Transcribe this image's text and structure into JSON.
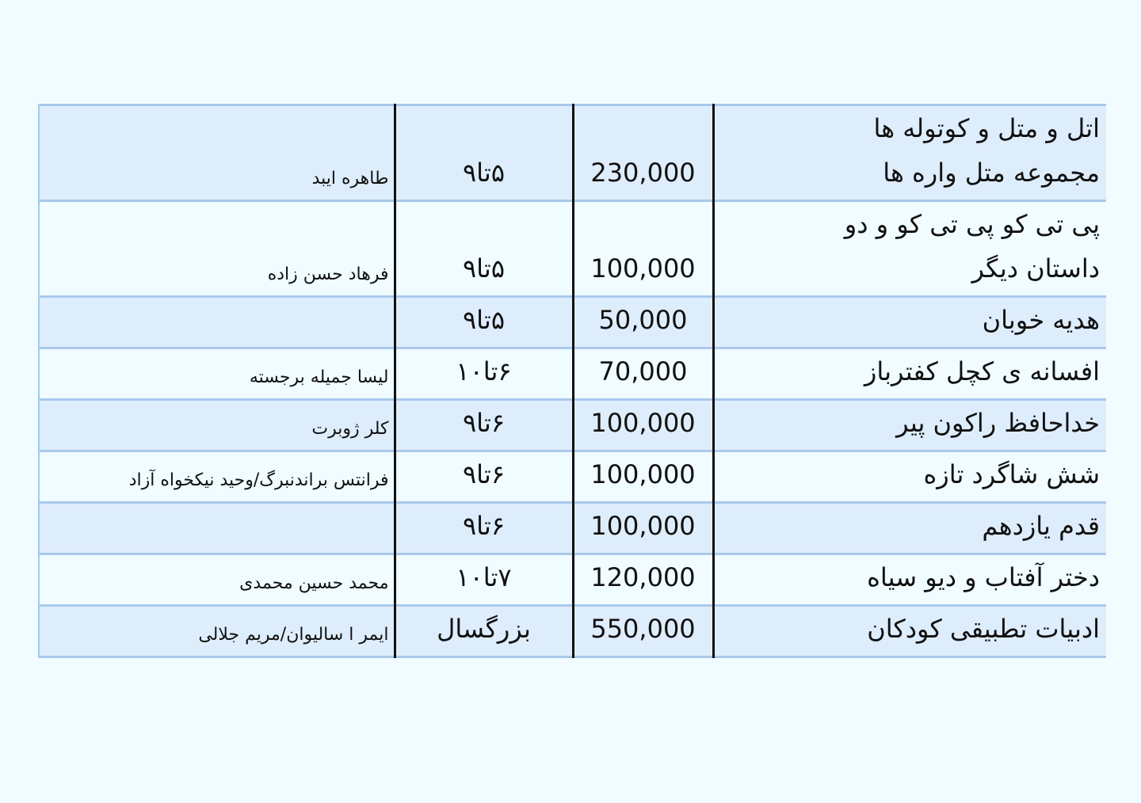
{
  "rows": [
    {
      "title_lines": [
        "اتل و متل و کوتوله ها",
        "مجموعه متل واره ها"
      ],
      "price": "230,000",
      "age": "۵تا۹",
      "author": "طاهره ایبد"
    },
    {
      "title_lines": [
        "پی تی کو پی تی کو و دو",
        "داستان دیگر"
      ],
      "price": "100,000",
      "age": "۵تا۹",
      "author": "فرهاد حسن زاده"
    },
    {
      "title": "هدیه خوبان",
      "price": "50,000",
      "age": "۵تا۹",
      "author": ""
    },
    {
      "title": "افسانه ی کچل کفترباز",
      "price": "70,000",
      "age": "۶تا۱۰",
      "author": "لیسا جمیله برجسته"
    },
    {
      "title": "خداحافظ راکون پیر",
      "price": "100,000",
      "age": "۶تا۹",
      "author": "کلر ژوبرت"
    },
    {
      "title": "شش شاگرد تازه",
      "price": "100,000",
      "age": "۶تا۹",
      "author": "فرانتس براندنبرگ/وحید نیکخواه آزاد"
    },
    {
      "title": "قدم یازدهم",
      "price": "100,000",
      "age": "۶تا۹",
      "author": ""
    },
    {
      "title": "دختر آفتاب و دیو سیاه",
      "price": "120,000",
      "age": "۷تا۱۰",
      "author": "محمد حسین محمدی"
    },
    {
      "title": "ادبیات تطبیقی کودکان",
      "price": "550,000",
      "age": "بزرگسال",
      "author": "ایمر ا سالیوان/مریم جلالی"
    }
  ]
}
